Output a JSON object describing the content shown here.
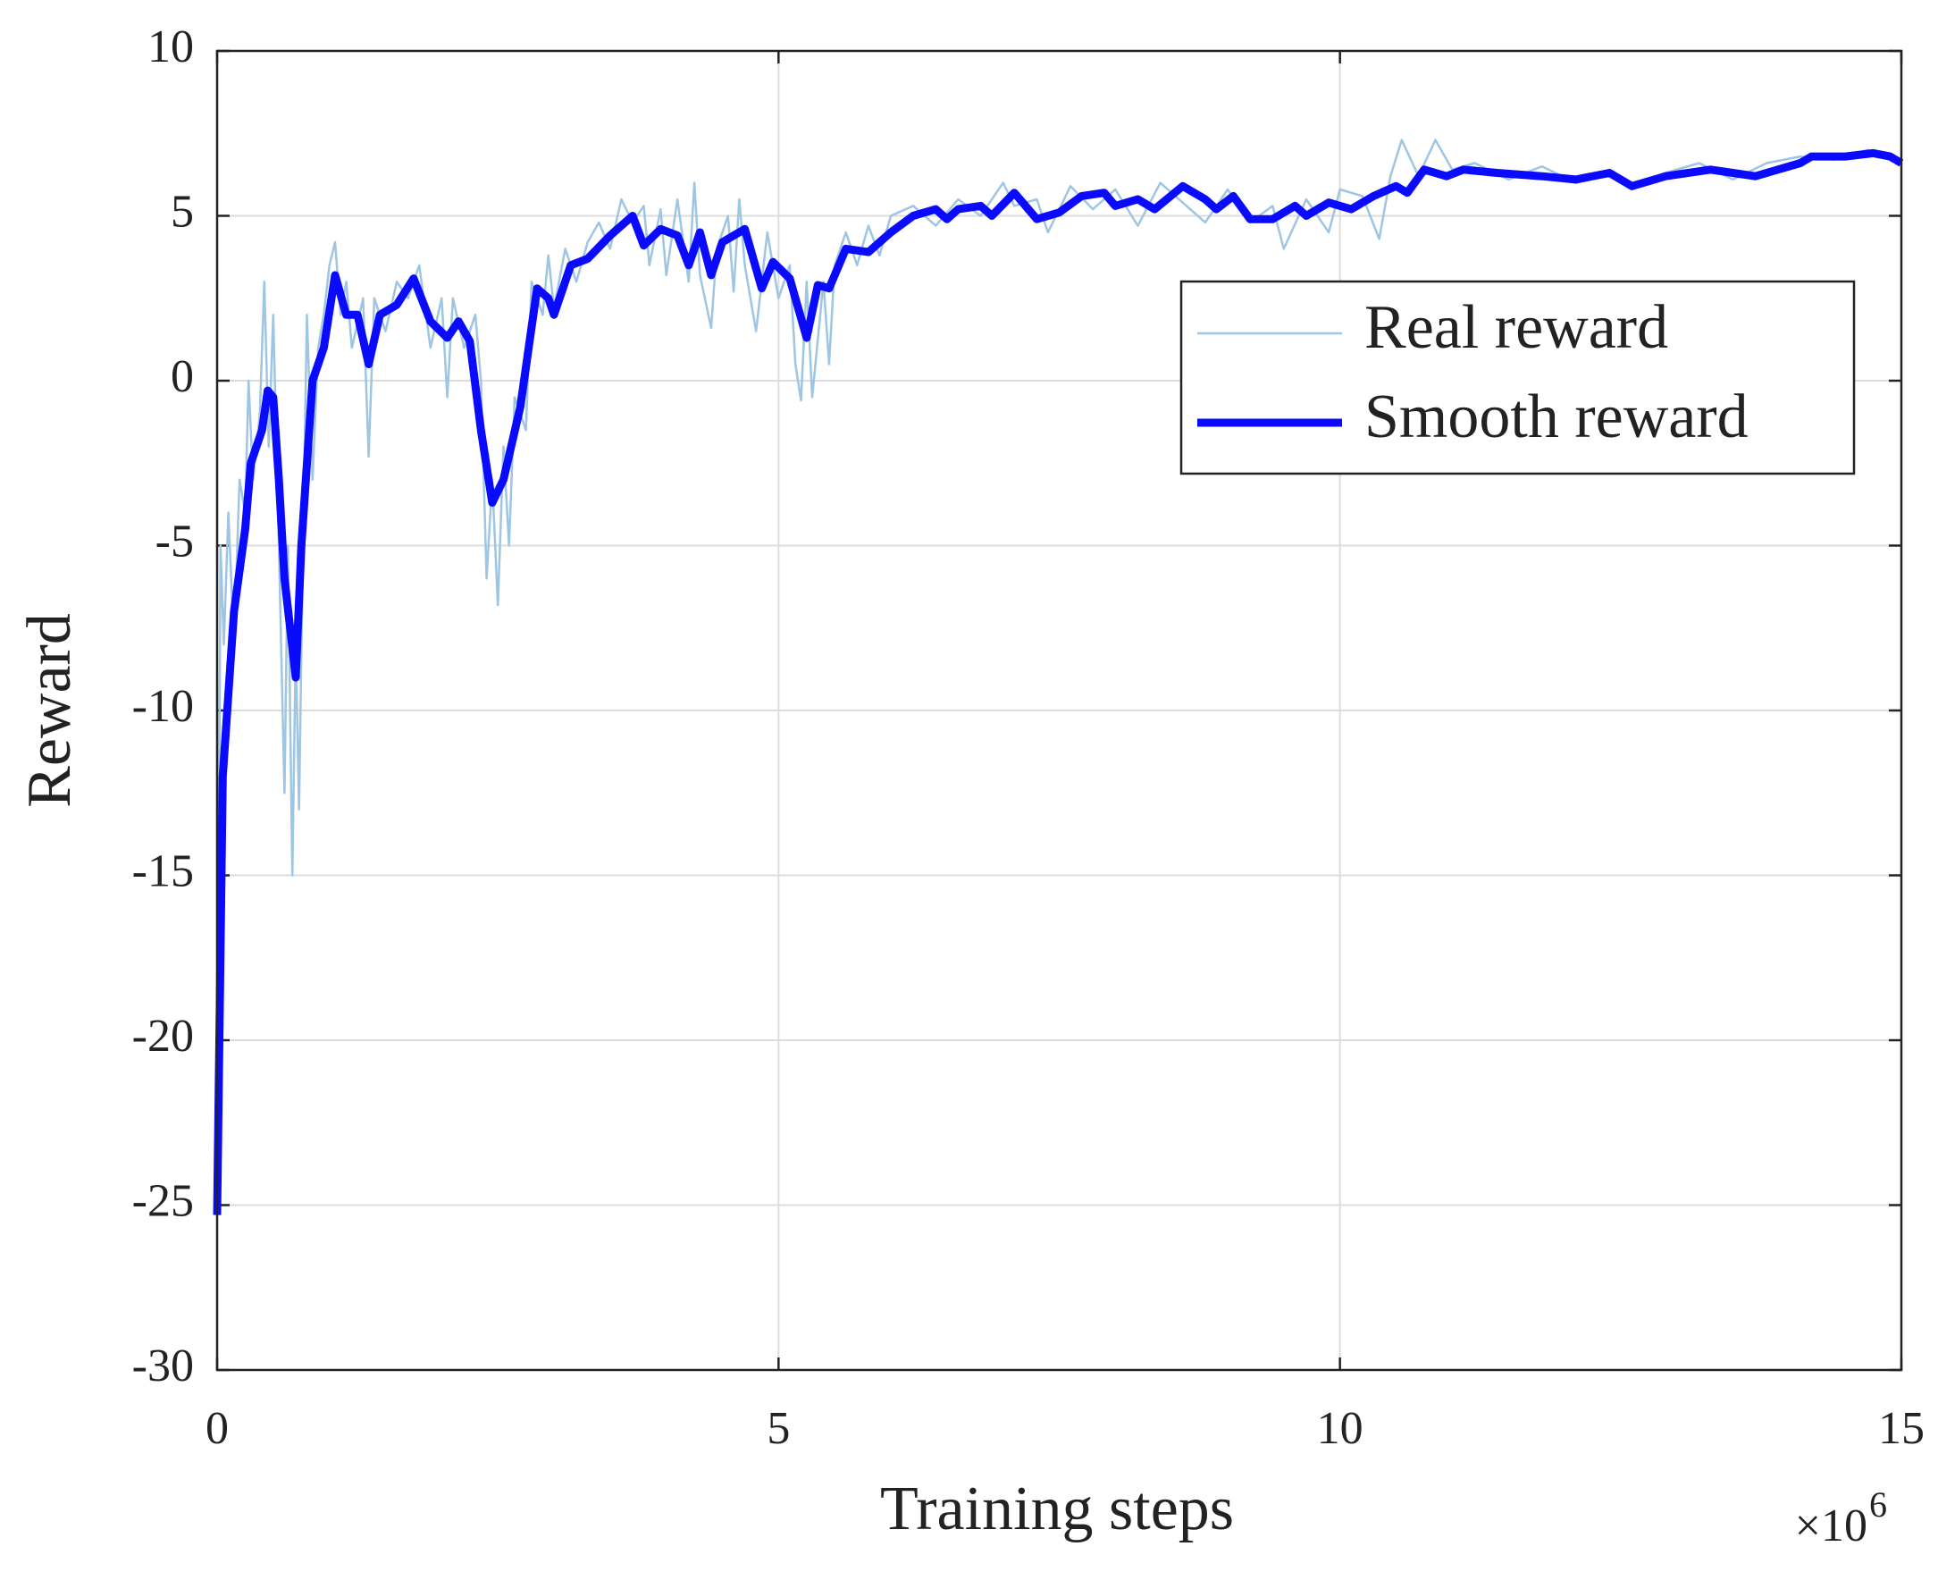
{
  "chart_data": {
    "type": "line",
    "x_label": "Training steps",
    "y_label": "Reward",
    "x_multiplier": "×10",
    "x_multiplier_exponent": "6",
    "xlim": [
      0,
      15
    ],
    "xticks": [
      0,
      5,
      10,
      15
    ],
    "ylim": [
      -30,
      10
    ],
    "yticks": [
      -30,
      -25,
      -20,
      -15,
      -10,
      -5,
      0,
      5,
      10
    ],
    "grid": true,
    "legend": "upper right",
    "series": [
      {
        "name": "Real reward",
        "color": "#9ec5e2",
        "linewidth": 2.5,
        "x": [
          0,
          0.03,
          0.06,
          0.1,
          0.15,
          0.2,
          0.25,
          0.28,
          0.32,
          0.38,
          0.42,
          0.46,
          0.5,
          0.55,
          0.6,
          0.63,
          0.67,
          0.7,
          0.73,
          0.76,
          0.8,
          0.85,
          0.9,
          0.95,
          1.0,
          1.05,
          1.1,
          1.15,
          1.2,
          1.3,
          1.35,
          1.4,
          1.5,
          1.6,
          1.7,
          1.8,
          1.9,
          2.0,
          2.05,
          2.1,
          2.2,
          2.3,
          2.35,
          2.4,
          2.45,
          2.5,
          2.55,
          2.6,
          2.65,
          2.75,
          2.8,
          2.9,
          2.95,
          3.0,
          3.1,
          3.2,
          3.3,
          3.4,
          3.5,
          3.6,
          3.7,
          3.8,
          3.85,
          3.95,
          4.0,
          4.1,
          4.2,
          4.25,
          4.3,
          4.4,
          4.45,
          4.55,
          4.6,
          4.65,
          4.7,
          4.8,
          4.9,
          5.0,
          5.1,
          5.15,
          5.2,
          5.25,
          5.3,
          5.4,
          5.45,
          5.5,
          5.6,
          5.7,
          5.8,
          5.9,
          6.0,
          6.2,
          6.4,
          6.6,
          6.8,
          7.0,
          7.1,
          7.3,
          7.4,
          7.6,
          7.8,
          8.0,
          8.2,
          8.4,
          8.6,
          8.8,
          9.0,
          9.2,
          9.4,
          9.5,
          9.7,
          9.9,
          10.0,
          10.2,
          10.35,
          10.45,
          10.55,
          10.7,
          10.85,
          11.0,
          11.2,
          11.5,
          11.8,
          12.1,
          12.4,
          12.6,
          12.9,
          13.2,
          13.5,
          13.8,
          14.1,
          14.4,
          14.7,
          15.0
        ],
        "values": [
          -25,
          -5,
          -8,
          -4,
          -8,
          -3,
          -4,
          0,
          -3,
          -1,
          3,
          -2,
          2,
          -5,
          -12.5,
          -5,
          -15,
          -8,
          -13,
          -6,
          2,
          -3,
          1,
          2,
          3.5,
          4.2,
          2,
          3,
          1,
          2.5,
          -2.3,
          2.5,
          1.5,
          3,
          2.5,
          3.5,
          1,
          2.5,
          -0.5,
          2.5,
          1,
          2,
          0,
          -6,
          -3,
          -6.8,
          -2,
          -5,
          -0.5,
          -1.5,
          3,
          2,
          3.8,
          2.2,
          4,
          3,
          4.2,
          4.8,
          4,
          5.5,
          4.8,
          5.3,
          3.5,
          5.2,
          3.2,
          5.5,
          3,
          6,
          3.2,
          1.6,
          4,
          5,
          2.7,
          5.5,
          3.5,
          1.5,
          4.5,
          2.5,
          3.5,
          0.5,
          -0.6,
          3,
          -0.5,
          3,
          0.5,
          3.5,
          4.5,
          3.5,
          4.7,
          3.8,
          5,
          5.3,
          4.7,
          5.5,
          5,
          6,
          5.3,
          5.5,
          4.5,
          5.9,
          5.2,
          5.8,
          4.7,
          6,
          5.4,
          4.8,
          5.8,
          4.8,
          5.3,
          4.0,
          5.5,
          4.5,
          5.8,
          5.6,
          4.3,
          6.2,
          7.3,
          6.2,
          7.3,
          6.4,
          6.6,
          6.1,
          6.5,
          6.0,
          6.4,
          5.9,
          6.3,
          6.6,
          6.1,
          6.6,
          6.8,
          6.7,
          7.0,
          6.7
        ]
      },
      {
        "name": "Smooth reward",
        "color": "#0a0aff",
        "linewidth": 9,
        "x": [
          0,
          0.05,
          0.15,
          0.25,
          0.3,
          0.4,
          0.45,
          0.5,
          0.55,
          0.6,
          0.7,
          0.75,
          0.85,
          0.95,
          1.05,
          1.15,
          1.25,
          1.35,
          1.45,
          1.6,
          1.75,
          1.9,
          2.05,
          2.15,
          2.25,
          2.35,
          2.45,
          2.55,
          2.7,
          2.85,
          2.95,
          3.0,
          3.15,
          3.3,
          3.5,
          3.7,
          3.8,
          3.95,
          4.1,
          4.2,
          4.3,
          4.4,
          4.5,
          4.7,
          4.85,
          4.95,
          5.1,
          5.25,
          5.35,
          5.45,
          5.6,
          5.8,
          6.0,
          6.2,
          6.4,
          6.5,
          6.6,
          6.8,
          6.9,
          7.1,
          7.3,
          7.5,
          7.7,
          7.9,
          8.0,
          8.2,
          8.35,
          8.6,
          8.8,
          8.9,
          9.05,
          9.2,
          9.4,
          9.6,
          9.7,
          9.9,
          10.1,
          10.3,
          10.5,
          10.6,
          10.75,
          10.95,
          11.1,
          11.4,
          11.8,
          12.1,
          12.4,
          12.6,
          12.9,
          13.3,
          13.5,
          13.7,
          13.9,
          14.1,
          14.2,
          14.5,
          14.75,
          14.9,
          15.0
        ],
        "values": [
          -25.3,
          -12,
          -7,
          -4.5,
          -2.5,
          -1.5,
          -0.3,
          -0.5,
          -3,
          -6,
          -9,
          -5,
          0,
          1,
          3.2,
          2,
          2,
          0.5,
          2,
          2.3,
          3.1,
          1.8,
          1.3,
          1.8,
          1.2,
          -1.5,
          -3.7,
          -3,
          -0.8,
          2.8,
          2.5,
          2.0,
          3.5,
          3.7,
          4.4,
          5.0,
          4.1,
          4.6,
          4.4,
          3.5,
          4.5,
          3.2,
          4.2,
          4.6,
          2.8,
          3.6,
          3.1,
          1.3,
          2.9,
          2.8,
          4.0,
          3.9,
          4.5,
          5.0,
          5.2,
          4.9,
          5.2,
          5.3,
          5.0,
          5.7,
          4.9,
          5.1,
          5.6,
          5.7,
          5.3,
          5.5,
          5.2,
          5.9,
          5.5,
          5.2,
          5.6,
          4.9,
          4.9,
          5.3,
          5.0,
          5.4,
          5.2,
          5.6,
          5.9,
          5.7,
          6.4,
          6.2,
          6.4,
          6.3,
          6.2,
          6.1,
          6.3,
          5.9,
          6.2,
          6.4,
          6.3,
          6.2,
          6.4,
          6.6,
          6.8,
          6.8,
          6.9,
          6.8,
          6.6
        ]
      }
    ]
  }
}
